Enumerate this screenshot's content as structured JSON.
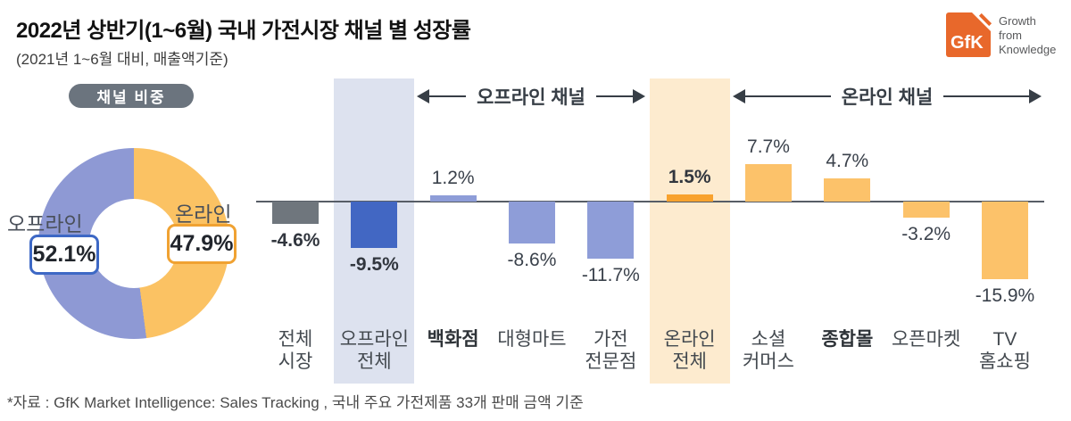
{
  "page": {
    "title": "2022년 상반기(1~6월) 국내 가전시장 채널 별 성장률",
    "subtitle": "(2021년 1~6월 대비, 매출액기준)",
    "footer": "*자료 : GfK Market Intelligence: Sales Tracking , 국내 주요 가전제품 33개 판매 금액 기준"
  },
  "logo": {
    "text": "GfK",
    "tagline_line1": "Growth",
    "tagline_line2": "from",
    "tagline_line3": "Knowledge",
    "color": "#e8682b"
  },
  "donut": {
    "badge": "채널 비중",
    "badge_bg": "#6b747e",
    "segments": [
      {
        "label": "오프라인",
        "value": 52.1,
        "value_label": "52.1%",
        "color": "#8e99d4",
        "accent": "#3d68c5"
      },
      {
        "label": "온라인",
        "value": 47.9,
        "value_label": "47.9%",
        "color": "#fbc263",
        "accent": "#f0a232"
      }
    ]
  },
  "bar_chart": {
    "axis_color": "#575d66",
    "group_headers": [
      {
        "label": "오프라인 채널"
      },
      {
        "label": "온라인 채널"
      }
    ],
    "bars": [
      {
        "category": "전체 시장",
        "lines": "전체\n시장",
        "display": "-4.6%",
        "value": -4.6,
        "color": "#6f767d",
        "value_bold": true,
        "label_bold": false,
        "highlight": null
      },
      {
        "category": "오프라인 전체",
        "lines": "오프라인\n전체",
        "display": "-9.5%",
        "value": -9.5,
        "color": "#4267c3",
        "value_bold": true,
        "label_bold": false,
        "highlight": "#dde2ef"
      },
      {
        "category": "백화점",
        "lines": "백화점",
        "display": "1.2%",
        "value": 1.2,
        "color": "#8e9dd8",
        "value_bold": false,
        "label_bold": true,
        "highlight": null
      },
      {
        "category": "대형마트",
        "lines": "대형마트",
        "display": "-8.6%",
        "value": -8.6,
        "color": "#8e9dd8",
        "value_bold": false,
        "label_bold": false,
        "highlight": null
      },
      {
        "category": "가전 전문점",
        "lines": "가전\n전문점",
        "display": "-11.7%",
        "value": -11.7,
        "color": "#8e9dd8",
        "value_bold": false,
        "label_bold": false,
        "highlight": null
      },
      {
        "category": "온라인 전체",
        "lines": "온라인\n전체",
        "display": "1.5%",
        "value": 1.5,
        "color": "#f8a22e",
        "value_bold": true,
        "label_bold": false,
        "highlight": "#fdebcf"
      },
      {
        "category": "소셜 커머스",
        "lines": "소셜\n커머스",
        "display": "7.7%",
        "value": 7.7,
        "color": "#fcc26a",
        "value_bold": false,
        "label_bold": false,
        "highlight": null
      },
      {
        "category": "종합몰",
        "lines": "종합몰",
        "display": "4.7%",
        "value": 4.7,
        "color": "#fcc26a",
        "value_bold": false,
        "label_bold": true,
        "highlight": null
      },
      {
        "category": "오픈마켓",
        "lines": "오픈마켓",
        "display": "-3.2%",
        "value": -3.2,
        "color": "#fcc26a",
        "value_bold": false,
        "label_bold": false,
        "highlight": null
      },
      {
        "category": "TV 홈쇼핑",
        "lines": "TV\n홈쇼핑",
        "display": "-15.9%",
        "value": -15.9,
        "color": "#fcc26a",
        "value_bold": false,
        "label_bold": false,
        "highlight": null
      }
    ]
  },
  "chart_data": [
    {
      "type": "pie",
      "title": "채널 비중",
      "categories": [
        "오프라인",
        "온라인"
      ],
      "values": [
        52.1,
        47.9
      ],
      "colors": [
        "#8e99d4",
        "#fbc263"
      ],
      "donut": true,
      "legend_position": "on-chart"
    },
    {
      "type": "bar",
      "title": "2022년 상반기(1~6월) 국내 가전시장 채널 별 성장률",
      "subtitle": "(2021년 1~6월 대비, 매출액기준)",
      "categories": [
        "전체 시장",
        "오프라인 전체",
        "백화점",
        "대형마트",
        "가전 전문점",
        "온라인 전체",
        "소셜 커머스",
        "종합몰",
        "오픈마켓",
        "TV 홈쇼핑"
      ],
      "values": [
        -4.6,
        -9.5,
        1.2,
        -8.6,
        -11.7,
        1.5,
        7.7,
        4.7,
        -3.2,
        -15.9
      ],
      "unit": "%",
      "xlabel": "",
      "ylabel": "성장률",
      "ylim": [
        -18,
        10
      ],
      "grid": false,
      "groups": [
        {
          "label": "오프라인 채널",
          "members": [
            "백화점",
            "대형마트",
            "가전 전문점"
          ]
        },
        {
          "label": "온라인 채널",
          "members": [
            "소셜 커머스",
            "종합몰",
            "오픈마켓",
            "TV 홈쇼핑"
          ]
        }
      ],
      "highlighted_categories": [
        "오프라인 전체",
        "온라인 전체"
      ],
      "source": "*자료 : GfK Market Intelligence: Sales Tracking , 국내 주요 가전제품 33개 판매 금액 기준"
    }
  ]
}
